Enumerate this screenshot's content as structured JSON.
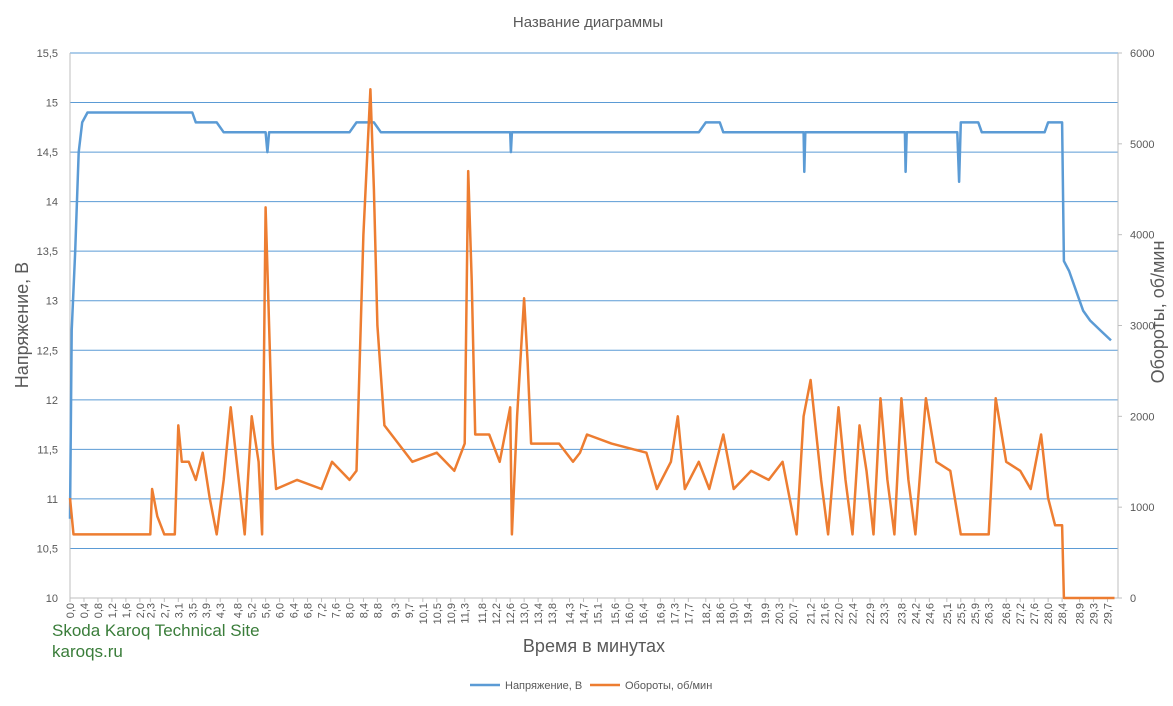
{
  "chart_data": {
    "type": "line",
    "title": "Название диаграммы",
    "x_label": "Время в минутах",
    "y_label": "Напряжение, В",
    "y2_label": "Обороты, об/мин",
    "annotations": [
      "Skoda Karoq Technical Site",
      "karoqs.ru"
    ],
    "grid": true,
    "legend": "bottom",
    "xlim": [
      0,
      30
    ],
    "ylim": [
      10,
      15.5
    ],
    "y2lim": [
      0,
      6000
    ],
    "yticks": [
      10,
      {
        "value": 10.5,
        "label": "10,5"
      },
      11,
      {
        "value": 11.5,
        "label": "11,5"
      },
      12,
      {
        "value": 12.5,
        "label": "12,5"
      },
      13,
      {
        "value": 13.5,
        "label": "13,5"
      },
      14,
      {
        "value": 14.5,
        "label": "14,5"
      },
      15,
      {
        "value": 15.5,
        "label": "15,5"
      }
    ],
    "y2ticks": [
      0,
      1000,
      2000,
      3000,
      4000,
      5000,
      6000
    ],
    "xticks": [
      {
        "value": 0,
        "label": "0,0"
      },
      {
        "value": 0.4,
        "label": "0,4"
      },
      {
        "value": 0.8,
        "label": "0,8"
      },
      {
        "value": 1.2,
        "label": "1,2"
      },
      {
        "value": 1.6,
        "label": "1,6"
      },
      {
        "value": 2.0,
        "label": "2,0"
      },
      {
        "value": 2.3,
        "label": "2,3"
      },
      {
        "value": 2.7,
        "label": "2,7"
      },
      {
        "value": 3.1,
        "label": "3,1"
      },
      {
        "value": 3.5,
        "label": "3,5"
      },
      {
        "value": 3.9,
        "label": "3,9"
      },
      {
        "value": 4.3,
        "label": "4,3"
      },
      {
        "value": 4.8,
        "label": "4,8"
      },
      {
        "value": 5.2,
        "label": "5,2"
      },
      {
        "value": 5.6,
        "label": "5,6"
      },
      {
        "value": 6.0,
        "label": "6,0"
      },
      {
        "value": 6.4,
        "label": "6,4"
      },
      {
        "value": 6.8,
        "label": "6,8"
      },
      {
        "value": 7.2,
        "label": "7,2"
      },
      {
        "value": 7.6,
        "label": "7,6"
      },
      {
        "value": 8.0,
        "label": "8,0"
      },
      {
        "value": 8.4,
        "label": "8,4"
      },
      {
        "value": 8.8,
        "label": "8,8"
      },
      {
        "value": 9.3,
        "label": "9,3"
      },
      {
        "value": 9.7,
        "label": "9,7"
      },
      {
        "value": 10.1,
        "label": "10,1"
      },
      {
        "value": 10.5,
        "label": "10,5"
      },
      {
        "value": 10.9,
        "label": "10,9"
      },
      {
        "value": 11.3,
        "label": "11,3"
      },
      {
        "value": 11.8,
        "label": "11,8"
      },
      {
        "value": 12.2,
        "label": "12,2"
      },
      {
        "value": 12.6,
        "label": "12,6"
      },
      {
        "value": 13.0,
        "label": "13,0"
      },
      {
        "value": 13.4,
        "label": "13,4"
      },
      {
        "value": 13.8,
        "label": "13,8"
      },
      {
        "value": 14.3,
        "label": "14,3"
      },
      {
        "value": 14.7,
        "label": "14,7"
      },
      {
        "value": 15.1,
        "label": "15,1"
      },
      {
        "value": 15.6,
        "label": "15,6"
      },
      {
        "value": 16.0,
        "label": "16,0"
      },
      {
        "value": 16.4,
        "label": "16,4"
      },
      {
        "value": 16.9,
        "label": "16,9"
      },
      {
        "value": 17.3,
        "label": "17,3"
      },
      {
        "value": 17.7,
        "label": "17,7"
      },
      {
        "value": 18.2,
        "label": "18,2"
      },
      {
        "value": 18.6,
        "label": "18,6"
      },
      {
        "value": 19.0,
        "label": "19,0"
      },
      {
        "value": 19.4,
        "label": "19,4"
      },
      {
        "value": 19.9,
        "label": "19,9"
      },
      {
        "value": 20.3,
        "label": "20,3"
      },
      {
        "value": 20.7,
        "label": "20,7"
      },
      {
        "value": 21.2,
        "label": "21,2"
      },
      {
        "value": 21.6,
        "label": "21,6"
      },
      {
        "value": 22.0,
        "label": "22,0"
      },
      {
        "value": 22.4,
        "label": "22,4"
      },
      {
        "value": 22.9,
        "label": "22,9"
      },
      {
        "value": 23.3,
        "label": "23,3"
      },
      {
        "value": 23.8,
        "label": "23,8"
      },
      {
        "value": 24.2,
        "label": "24,2"
      },
      {
        "value": 24.6,
        "label": "24,6"
      },
      {
        "value": 25.1,
        "label": "25,1"
      },
      {
        "value": 25.5,
        "label": "25,5"
      },
      {
        "value": 25.9,
        "label": "25,9"
      },
      {
        "value": 26.3,
        "label": "26,3"
      },
      {
        "value": 26.8,
        "label": "26,8"
      },
      {
        "value": 27.2,
        "label": "27,2"
      },
      {
        "value": 27.6,
        "label": "27,6"
      },
      {
        "value": 28.0,
        "label": "28,0"
      },
      {
        "value": 28.4,
        "label": "28,4"
      },
      {
        "value": 28.9,
        "label": "28,9"
      },
      {
        "value": 29.3,
        "label": "29,3"
      },
      {
        "value": 29.7,
        "label": "29,7"
      }
    ],
    "series": [
      {
        "name": "Напряжение, В",
        "color": "#5b9bd5",
        "axis": "y",
        "x": [
          0,
          0.05,
          0.15,
          0.25,
          0.35,
          0.5,
          3.5,
          3.6,
          4.2,
          4.4,
          5.6,
          5.65,
          5.7,
          8.0,
          8.2,
          8.7,
          8.9,
          12.6,
          12.62,
          12.65,
          18.0,
          18.2,
          18.6,
          18.7,
          21.0,
          21.02,
          21.05,
          23.9,
          23.92,
          23.95,
          25.4,
          25.45,
          25.5,
          26.0,
          26.1,
          27.9,
          28.0,
          28.4,
          28.45,
          28.6,
          28.8,
          29.0,
          29.2,
          29.5,
          29.8
        ],
        "values": [
          10.8,
          12.7,
          13.5,
          14.5,
          14.8,
          14.9,
          14.9,
          14.8,
          14.8,
          14.7,
          14.7,
          14.5,
          14.7,
          14.7,
          14.8,
          14.8,
          14.7,
          14.7,
          14.5,
          14.7,
          14.7,
          14.8,
          14.8,
          14.7,
          14.7,
          14.3,
          14.7,
          14.7,
          14.3,
          14.7,
          14.7,
          14.2,
          14.8,
          14.8,
          14.7,
          14.7,
          14.8,
          14.8,
          13.4,
          13.3,
          13.1,
          12.9,
          12.8,
          12.7,
          12.6
        ]
      },
      {
        "name": "Обороты, об/мин",
        "color": "#ed7d31",
        "axis": "y2",
        "x": [
          0,
          0.1,
          2.3,
          2.35,
          2.5,
          2.7,
          3.0,
          3.1,
          3.2,
          3.4,
          3.6,
          3.8,
          4.0,
          4.2,
          4.4,
          4.6,
          4.8,
          5.0,
          5.2,
          5.4,
          5.5,
          5.6,
          5.8,
          5.9,
          6.5,
          7.2,
          7.5,
          8.0,
          8.2,
          8.4,
          8.6,
          8.7,
          8.8,
          9.0,
          9.4,
          9.8,
          10.5,
          11.0,
          11.3,
          11.4,
          11.5,
          11.6,
          12.0,
          12.3,
          12.6,
          12.65,
          12.8,
          13.0,
          13.1,
          13.2,
          14.0,
          14.4,
          14.6,
          14.8,
          15.5,
          16.5,
          16.8,
          17.2,
          17.4,
          17.6,
          18.0,
          18.3,
          18.7,
          19.0,
          19.5,
          20.0,
          20.4,
          20.8,
          21.0,
          21.2,
          21.5,
          21.7,
          22.0,
          22.2,
          22.4,
          22.6,
          22.8,
          23.0,
          23.2,
          23.4,
          23.6,
          23.8,
          24.0,
          24.2,
          24.5,
          24.8,
          25.2,
          25.5,
          26.3,
          26.5,
          26.8,
          27.2,
          27.5,
          27.8,
          28.0,
          28.2,
          28.4,
          28.45,
          29.9
        ],
        "values": [
          1100,
          700,
          700,
          1200,
          900,
          700,
          700,
          1900,
          1500,
          1500,
          1300,
          1600,
          1100,
          700,
          1300,
          2100,
          1400,
          700,
          2000,
          1500,
          700,
          4300,
          1700,
          1200,
          1300,
          1200,
          1500,
          1300,
          1400,
          4000,
          5600,
          4500,
          3000,
          1900,
          1700,
          1500,
          1600,
          1400,
          1700,
          4700,
          3500,
          1800,
          1800,
          1500,
          2100,
          700,
          2000,
          3300,
          2600,
          1700,
          1700,
          1500,
          1600,
          1800,
          1700,
          1600,
          1200,
          1500,
          2000,
          1200,
          1500,
          1200,
          1800,
          1200,
          1400,
          1300,
          1500,
          700,
          2000,
          2400,
          1300,
          700,
          2100,
          1300,
          700,
          1900,
          1400,
          700,
          2200,
          1300,
          700,
          2200,
          1300,
          700,
          2200,
          1500,
          1400,
          700,
          700,
          2200,
          1500,
          1400,
          1200,
          1800,
          1100,
          800,
          800,
          0,
          0
        ]
      }
    ]
  }
}
